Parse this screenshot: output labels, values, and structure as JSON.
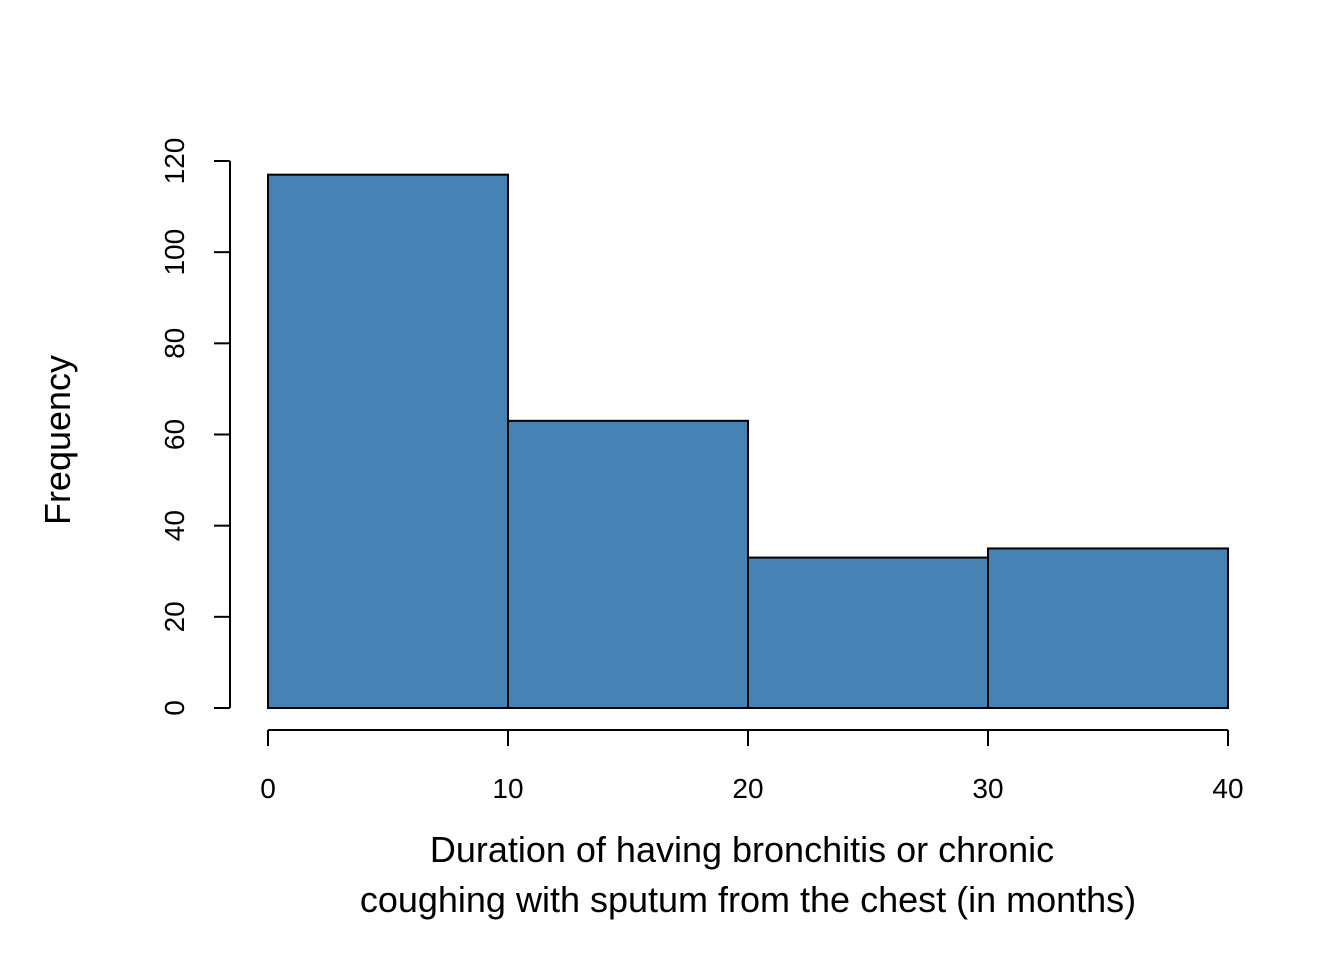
{
  "chart_data": {
    "type": "bar",
    "title": "",
    "xlabel": "Duration of having bronchitis or chronic coughing with sputum from the chest (in months)",
    "xlabel_lines": [
      "Duration of having bronchitis or chronic",
      "coughing with sputum from the chest (in months)"
    ],
    "ylabel": "Frequency",
    "bins": [
      {
        "start": 0,
        "end": 10,
        "value": 117
      },
      {
        "start": 10,
        "end": 20,
        "value": 63
      },
      {
        "start": 20,
        "end": 30,
        "value": 33
      },
      {
        "start": 30,
        "end": 40,
        "value": 35
      }
    ],
    "xlim": [
      0,
      40
    ],
    "ylim": [
      0,
      120
    ],
    "xticks": [
      0,
      10,
      20,
      30,
      40
    ],
    "yticks": [
      0,
      20,
      40,
      60,
      80,
      100,
      120
    ],
    "bar_color": "#4682B4",
    "grid": false,
    "legend": "none"
  }
}
